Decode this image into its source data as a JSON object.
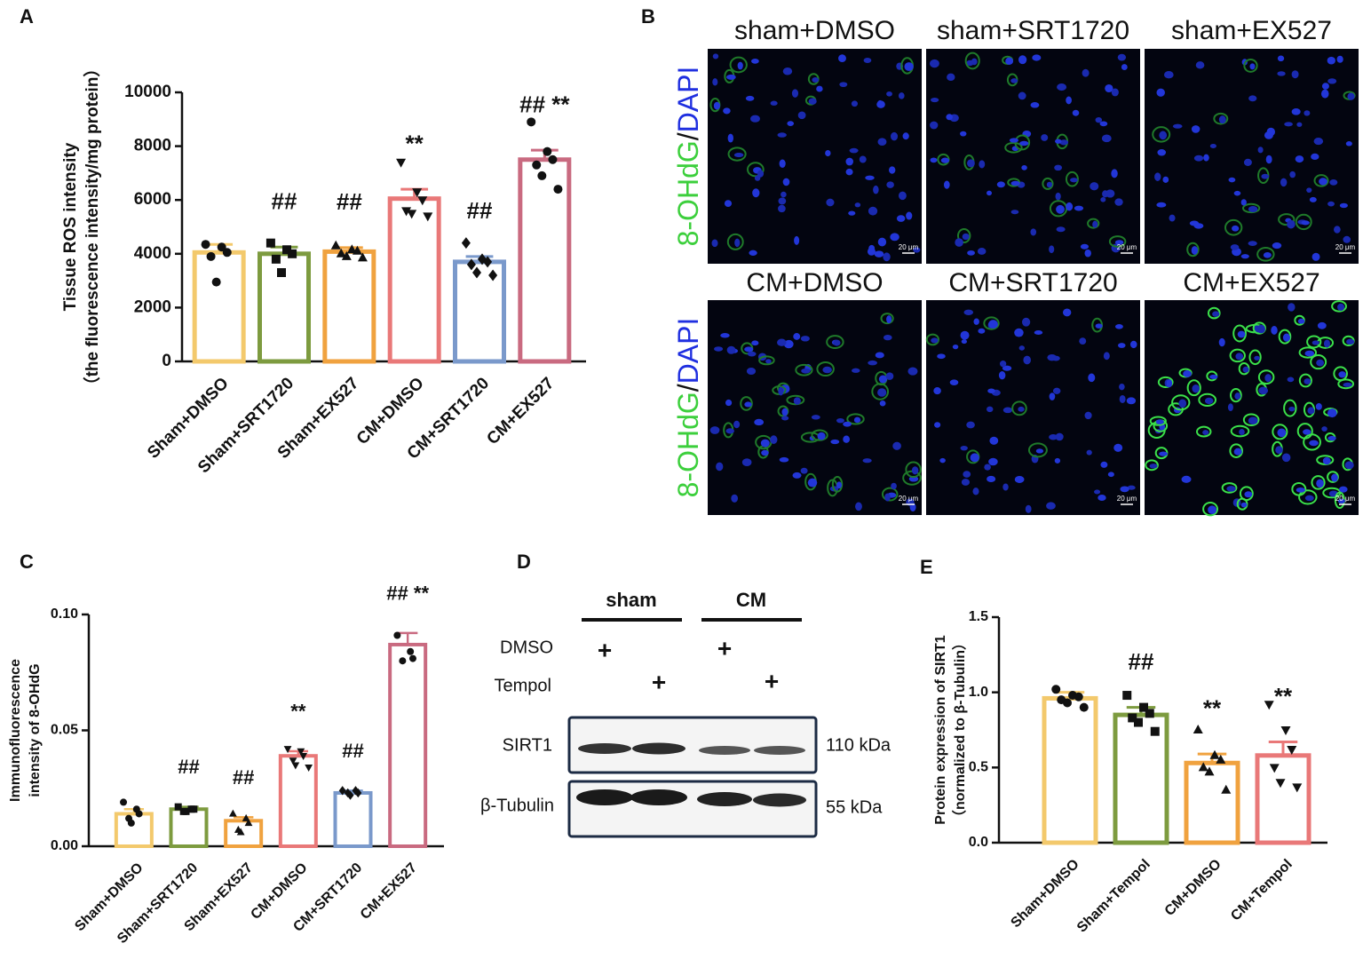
{
  "panel_labels": [
    "A",
    "B",
    "C",
    "D",
    "E"
  ],
  "chart_data": [
    {
      "type": "bar",
      "ylabel": [
        "Tissue ROS intensity",
        "（the fluorescence intensity/mg protein）"
      ],
      "categories": [
        "Sham+DMSO",
        "Sham+SRT1720",
        "Sham+EX527",
        "CM+DMSO",
        "CM+SRT1720",
        "CM+EX527"
      ],
      "values": [
        4050,
        4000,
        4080,
        6050,
        3700,
        7500
      ],
      "errors": [
        300,
        250,
        150,
        350,
        200,
        350
      ],
      "points": [
        [
          4350,
          4250,
          4050,
          3900,
          2950
        ],
        [
          4400,
          4150,
          4000,
          3800,
          3300
        ],
        [
          4300,
          4150,
          4100,
          4000,
          3900,
          3850
        ],
        [
          7400,
          6300,
          6000,
          5600,
          5500,
          5400
        ],
        [
          4400,
          3800,
          3700,
          3600,
          3300,
          3200
        ],
        [
          8900,
          7800,
          7500,
          7300,
          6900,
          6400
        ]
      ],
      "markers": [
        "circle",
        "square",
        "triangle",
        "triangle-down",
        "diamond",
        "circle"
      ],
      "colors": [
        "#f3c96c",
        "#7d9b3f",
        "#f0a23f",
        "#e97878",
        "#7a99cb",
        "#c96a80"
      ],
      "annotations": [
        null,
        "##",
        "##",
        "**",
        "##",
        "## **"
      ],
      "ylim": [
        0,
        10000
      ],
      "yticks": [
        0,
        2000,
        4000,
        6000,
        8000,
        10000
      ]
    },
    {
      "type": "bar",
      "ylabel": [
        "Immunofluorescence",
        "intensity of 8-OHdG"
      ],
      "categories": [
        "Sham+DMSO",
        "Sham+SRT1720",
        "Sham+EX527",
        "CM+DMSO",
        "CM+SRT1720",
        "CM+EX527"
      ],
      "values": [
        0.014,
        0.016,
        0.011,
        0.039,
        0.023,
        0.087
      ],
      "errors": [
        0.002,
        0.001,
        0.0015,
        0.002,
        0.001,
        0.005
      ],
      "points": [
        [
          0.019,
          0.016,
          0.014,
          0.012,
          0.01
        ],
        [
          0.017,
          0.016,
          0.016,
          0.015,
          0.015
        ],
        [
          0.014,
          0.012,
          0.01,
          0.007,
          0.006
        ],
        [
          0.042,
          0.041,
          0.039,
          0.037,
          0.035,
          0.034
        ],
        [
          0.024,
          0.024,
          0.023,
          0.023,
          0.022
        ],
        [
          0.091,
          0.084,
          0.081,
          0.08
        ]
      ],
      "markers": [
        "circle",
        "square",
        "triangle",
        "triangle-down",
        "diamond",
        "circle"
      ],
      "colors": [
        "#f3c96c",
        "#7d9b3f",
        "#f0a23f",
        "#e97878",
        "#7a99cb",
        "#c96a80"
      ],
      "annotations": [
        null,
        "##",
        "##",
        "**",
        "##",
        "## **"
      ],
      "ylim": [
        0,
        0.1
      ],
      "yticks": [
        {
          "value": 0,
          "label": "0.00"
        },
        {
          "value": 0.05,
          "label": "0.05"
        },
        {
          "value": 0.1,
          "label": "0.10"
        }
      ]
    },
    {
      "type": "bar",
      "ylabel": [
        "Protein expression of SIRT1",
        "（normalized to β-Tubulin）"
      ],
      "categories": [
        "Sham+DMSO",
        "Sham+Tempol",
        "CM+DMSO",
        "CM+Tempol"
      ],
      "values": [
        0.96,
        0.85,
        0.53,
        0.58
      ],
      "errors": [
        0.04,
        0.05,
        0.06,
        0.09
      ],
      "points": [
        [
          1.02,
          0.98,
          0.97,
          0.95,
          0.93,
          0.9
        ],
        [
          0.98,
          0.9,
          0.86,
          0.83,
          0.8,
          0.74
        ],
        [
          0.75,
          0.58,
          0.55,
          0.5,
          0.47,
          0.35
        ],
        [
          0.92,
          0.75,
          0.62,
          0.5,
          0.4,
          0.37
        ]
      ],
      "markers": [
        "circle",
        "square",
        "triangle",
        "triangle-down"
      ],
      "colors": [
        "#f3c96c",
        "#7d9b3f",
        "#f0a23f",
        "#e97878"
      ],
      "annotations": [
        null,
        "##",
        "**",
        "**"
      ],
      "ylim": [
        0,
        1.5
      ],
      "yticks": [
        {
          "value": 0,
          "label": "0.0"
        },
        {
          "value": 0.5,
          "label": "0.5"
        },
        {
          "value": 1,
          "label": "1.0"
        },
        {
          "value": 1.5,
          "label": "1.5"
        }
      ]
    }
  ],
  "micrographs": {
    "top_titles": [
      "sham+DMSO",
      "sham+SRT1720",
      "sham+EX527"
    ],
    "bottom_titles": [
      "CM+DMSO",
      "CM+SRT1720",
      "CM+EX527"
    ],
    "stain_green": "8-OHdG",
    "separator": "/",
    "stain_blue": "DAPI",
    "scale_bar": "20 μm"
  },
  "blot": {
    "groups": [
      "sham",
      "CM"
    ],
    "treatments": [
      "DMSO",
      "Tempol"
    ],
    "plus": "+",
    "proteins": [
      {
        "name": "SIRT1",
        "size": "110 kDa"
      },
      {
        "name": "β-Tubulin",
        "size": "55 kDa"
      }
    ]
  }
}
